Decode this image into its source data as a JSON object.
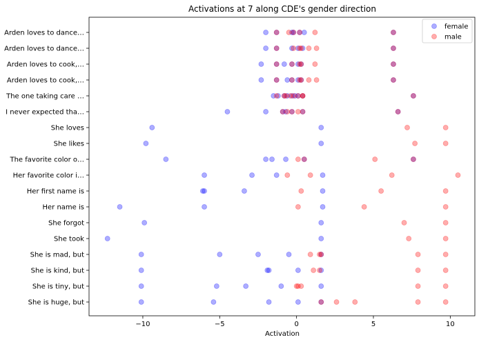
{
  "chart_data": {
    "type": "scatter",
    "title": "Activations at 7 along CDE's gender direction",
    "xlabel": "Activation",
    "ylabel": "",
    "xlim": [
      -13.5,
      11.6
    ],
    "xticks": [
      -10,
      -5,
      0,
      5,
      10
    ],
    "xtick_labels": [
      "−10",
      "−5",
      "0",
      "5",
      "10"
    ],
    "grid": false,
    "legend_position": "top-right",
    "categories": [
      "Arden loves to dance…",
      "Arden loves to dance…",
      "Arden loves to cook,…",
      "Arden loves to cook,…",
      "The one taking care …",
      "I never expected tha…",
      "She loves",
      "She likes",
      "The favorite color o…",
      "Her favorite color i…",
      "Her first name is",
      "Her name is",
      "She forgot",
      "She took",
      "She is mad, but",
      "She is kind, but",
      "She is tiny, but",
      "She is huge, but"
    ],
    "series": [
      {
        "name": "female",
        "color": "#0000ff",
        "points": [
          [
            -2.0,
            0
          ],
          [
            -1.3,
            0
          ],
          [
            -0.3,
            0
          ],
          [
            -0.2,
            0
          ],
          [
            0.2,
            0
          ],
          [
            0.5,
            0
          ],
          [
            6.3,
            0
          ],
          [
            -2.0,
            1
          ],
          [
            -1.3,
            1
          ],
          [
            -0.3,
            1
          ],
          [
            0.1,
            1
          ],
          [
            0.4,
            1
          ],
          [
            6.3,
            1
          ],
          [
            -2.3,
            2
          ],
          [
            -1.3,
            2
          ],
          [
            -0.8,
            2
          ],
          [
            -0.3,
            2
          ],
          [
            0.1,
            2
          ],
          [
            0.3,
            2
          ],
          [
            6.3,
            2
          ],
          [
            -2.3,
            3
          ],
          [
            -1.3,
            3
          ],
          [
            -0.6,
            3
          ],
          [
            -0.3,
            3
          ],
          [
            0.1,
            3
          ],
          [
            0.3,
            3
          ],
          [
            6.3,
            3
          ],
          [
            -1.5,
            4
          ],
          [
            -1.2,
            4
          ],
          [
            -0.8,
            4
          ],
          [
            -0.6,
            4
          ],
          [
            -0.3,
            4
          ],
          [
            -0.1,
            4
          ],
          [
            0.1,
            4
          ],
          [
            0.4,
            4
          ],
          [
            7.6,
            4
          ],
          [
            -4.5,
            5
          ],
          [
            -2.0,
            5
          ],
          [
            -0.9,
            5
          ],
          [
            -0.7,
            5
          ],
          [
            -0.3,
            5
          ],
          [
            0.4,
            5
          ],
          [
            6.6,
            5
          ],
          [
            -9.4,
            6
          ],
          [
            1.6,
            6
          ],
          [
            -9.8,
            7
          ],
          [
            1.6,
            7
          ],
          [
            -8.5,
            8
          ],
          [
            -2.0,
            8
          ],
          [
            -1.6,
            8
          ],
          [
            -0.7,
            8
          ],
          [
            0.5,
            8
          ],
          [
            7.6,
            8
          ],
          [
            -6.0,
            9
          ],
          [
            -2.9,
            9
          ],
          [
            -1.3,
            9
          ],
          [
            1.7,
            9
          ],
          [
            -6.1,
            10
          ],
          [
            -6.0,
            10
          ],
          [
            -3.4,
            10
          ],
          [
            1.7,
            10
          ],
          [
            -11.5,
            11
          ],
          [
            -6.0,
            11
          ],
          [
            1.7,
            11
          ],
          [
            -9.9,
            12
          ],
          [
            1.6,
            12
          ],
          [
            -12.3,
            13
          ],
          [
            1.6,
            13
          ],
          [
            -10.1,
            14
          ],
          [
            -5.0,
            14
          ],
          [
            -2.5,
            14
          ],
          [
            -0.5,
            14
          ],
          [
            1.6,
            14
          ],
          [
            -10.1,
            15
          ],
          [
            -1.9,
            15
          ],
          [
            -1.8,
            15
          ],
          [
            0.1,
            15
          ],
          [
            1.6,
            15
          ],
          [
            -10.1,
            16
          ],
          [
            -5.2,
            16
          ],
          [
            -3.3,
            16
          ],
          [
            -1.0,
            16
          ],
          [
            1.6,
            16
          ],
          [
            -10.1,
            17
          ],
          [
            -5.4,
            17
          ],
          [
            -1.8,
            17
          ],
          [
            0.1,
            17
          ],
          [
            1.6,
            17
          ]
        ]
      },
      {
        "name": "male",
        "color": "#ff0000",
        "points": [
          [
            -1.3,
            0
          ],
          [
            -0.5,
            0
          ],
          [
            -0.2,
            0
          ],
          [
            0.2,
            0
          ],
          [
            1.2,
            0
          ],
          [
            6.3,
            0
          ],
          [
            -1.3,
            1
          ],
          [
            -0.2,
            1
          ],
          [
            0.2,
            1
          ],
          [
            0.3,
            1
          ],
          [
            0.8,
            1
          ],
          [
            1.3,
            1
          ],
          [
            6.3,
            1
          ],
          [
            -1.3,
            2
          ],
          [
            -0.3,
            2
          ],
          [
            0.2,
            2
          ],
          [
            0.3,
            2
          ],
          [
            1.2,
            2
          ],
          [
            6.3,
            2
          ],
          [
            -1.3,
            3
          ],
          [
            -0.3,
            3
          ],
          [
            0.2,
            3
          ],
          [
            0.3,
            3
          ],
          [
            0.8,
            3
          ],
          [
            1.3,
            3
          ],
          [
            6.3,
            3
          ],
          [
            -1.3,
            4
          ],
          [
            -0.8,
            4
          ],
          [
            -0.7,
            4
          ],
          [
            -0.4,
            4
          ],
          [
            -0.2,
            4
          ],
          [
            0.1,
            4
          ],
          [
            0.4,
            4
          ],
          [
            0.4,
            4
          ],
          [
            7.6,
            4
          ],
          [
            -0.9,
            5
          ],
          [
            -0.6,
            5
          ],
          [
            -0.3,
            5
          ],
          [
            0.1,
            5
          ],
          [
            0.4,
            5
          ],
          [
            6.6,
            5
          ],
          [
            7.2,
            6
          ],
          [
            9.7,
            6
          ],
          [
            7.7,
            7
          ],
          [
            9.7,
            7
          ],
          [
            0.1,
            8
          ],
          [
            0.5,
            8
          ],
          [
            5.1,
            8
          ],
          [
            7.6,
            8
          ],
          [
            -0.6,
            9
          ],
          [
            0.9,
            9
          ],
          [
            6.2,
            9
          ],
          [
            10.5,
            9
          ],
          [
            0.3,
            10
          ],
          [
            5.5,
            10
          ],
          [
            9.7,
            10
          ],
          [
            0.1,
            11
          ],
          [
            4.4,
            11
          ],
          [
            9.7,
            11
          ],
          [
            7.0,
            12
          ],
          [
            9.7,
            12
          ],
          [
            7.3,
            13
          ],
          [
            9.7,
            13
          ],
          [
            0.9,
            14
          ],
          [
            1.5,
            14
          ],
          [
            1.6,
            14
          ],
          [
            7.9,
            14
          ],
          [
            9.7,
            14
          ],
          [
            1.1,
            15
          ],
          [
            1.5,
            15
          ],
          [
            7.9,
            15
          ],
          [
            9.7,
            15
          ],
          [
            0.0,
            16
          ],
          [
            0.1,
            16
          ],
          [
            0.3,
            16
          ],
          [
            7.9,
            16
          ],
          [
            9.7,
            16
          ],
          [
            1.6,
            17
          ],
          [
            2.6,
            17
          ],
          [
            3.8,
            17
          ],
          [
            7.9,
            17
          ],
          [
            9.7,
            17
          ]
        ]
      }
    ]
  }
}
